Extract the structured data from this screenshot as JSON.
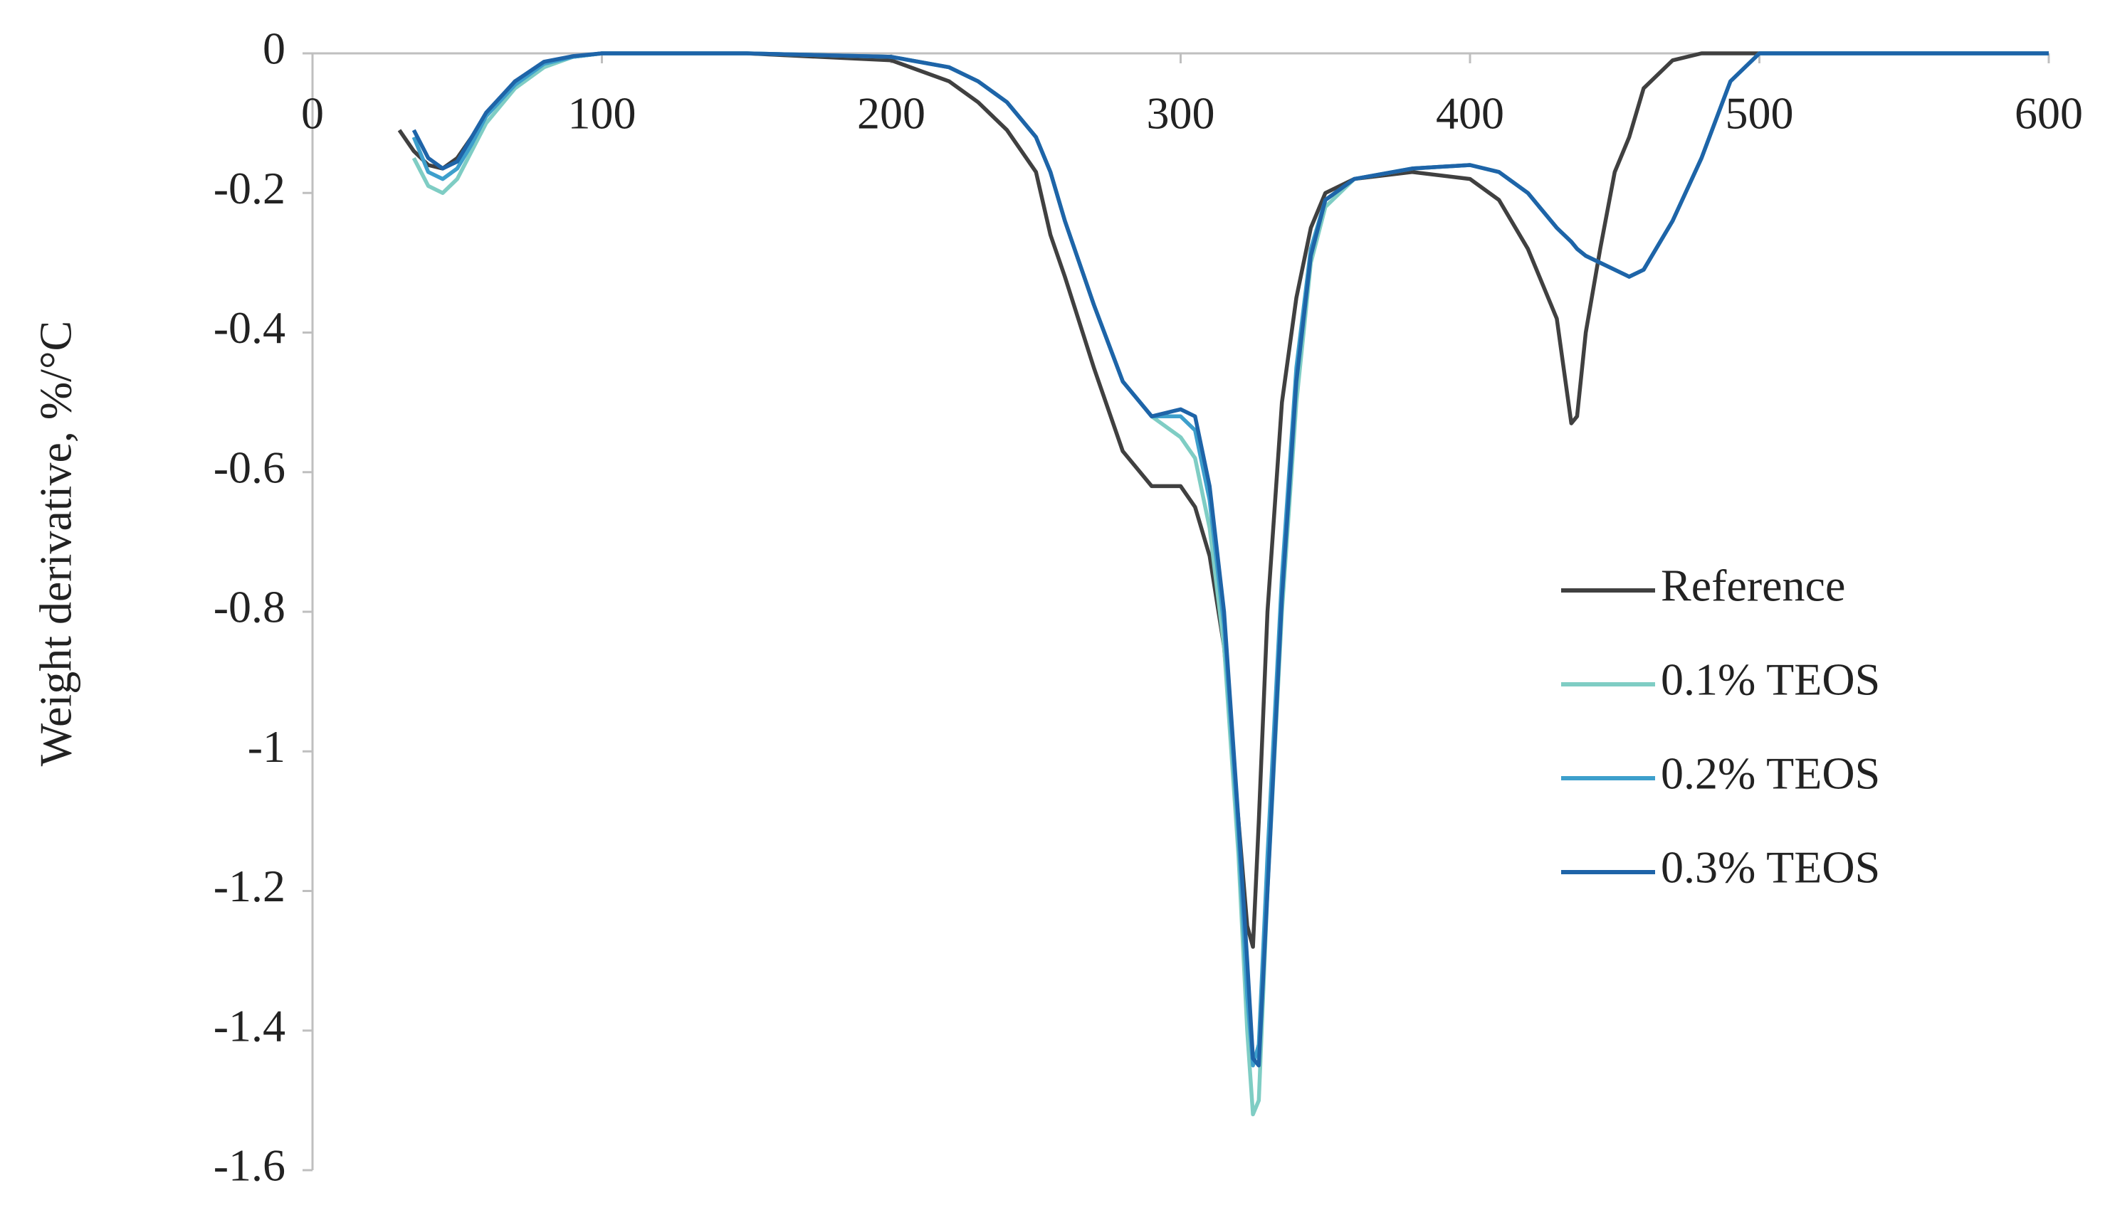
{
  "chart_data": {
    "type": "line",
    "y_label": "Weight derivative,  %/°C",
    "x": [
      30,
      35,
      40,
      45,
      50,
      55,
      60,
      70,
      80,
      90,
      100,
      120,
      150,
      200,
      220,
      230,
      240,
      250,
      255,
      260,
      270,
      280,
      290,
      300,
      305,
      310,
      315,
      320,
      323,
      325,
      327,
      330,
      335,
      340,
      345,
      350,
      360,
      380,
      400,
      410,
      420,
      430,
      435,
      437,
      440,
      445,
      450,
      455,
      460,
      470,
      480,
      490,
      500,
      550,
      600
    ],
    "series": [
      {
        "name": "Reference",
        "color": "#404040",
        "values": [
          -0.11,
          -0.14,
          -0.16,
          -0.165,
          -0.15,
          -0.12,
          -0.09,
          -0.04,
          -0.015,
          -0.005,
          0,
          0,
          0,
          -0.01,
          -0.04,
          -0.07,
          -0.11,
          -0.17,
          -0.26,
          -0.32,
          -0.45,
          -0.57,
          -0.62,
          -0.62,
          -0.65,
          -0.72,
          -0.85,
          -1.1,
          -1.25,
          -1.28,
          -1.1,
          -0.8,
          -0.5,
          -0.35,
          -0.25,
          -0.2,
          -0.18,
          -0.17,
          -0.18,
          -0.21,
          -0.28,
          -0.38,
          -0.53,
          -0.52,
          -0.4,
          -0.28,
          -0.17,
          -0.12,
          -0.05,
          -0.01,
          0,
          0,
          0,
          0,
          0
        ]
      },
      {
        "name": "0.1% TEOS",
        "color": "#7fcdc4",
        "values": [
          null,
          -0.15,
          -0.19,
          -0.2,
          -0.18,
          -0.14,
          -0.1,
          -0.05,
          -0.02,
          -0.005,
          0,
          0,
          0,
          -0.005,
          -0.02,
          -0.04,
          -0.07,
          -0.12,
          -0.17,
          -0.24,
          -0.36,
          -0.47,
          -0.52,
          -0.55,
          -0.58,
          -0.68,
          -0.85,
          -1.15,
          -1.4,
          -1.52,
          -1.5,
          -1.2,
          -0.8,
          -0.5,
          -0.3,
          -0.22,
          -0.18,
          -0.165,
          -0.16,
          -0.17,
          -0.2,
          -0.25,
          -0.27,
          -0.28,
          -0.29,
          -0.3,
          -0.31,
          -0.32,
          -0.31,
          -0.24,
          -0.15,
          -0.04,
          0,
          0,
          0
        ]
      },
      {
        "name": "0.2% TEOS",
        "color": "#3d9fcc",
        "values": [
          null,
          -0.12,
          -0.17,
          -0.18,
          -0.165,
          -0.13,
          -0.09,
          -0.045,
          -0.015,
          -0.005,
          0,
          0,
          0,
          -0.005,
          -0.02,
          -0.04,
          -0.07,
          -0.12,
          -0.17,
          -0.24,
          -0.36,
          -0.47,
          -0.52,
          -0.52,
          -0.54,
          -0.64,
          -0.82,
          -1.12,
          -1.35,
          -1.45,
          -1.42,
          -1.15,
          -0.75,
          -0.45,
          -0.28,
          -0.21,
          -0.18,
          -0.165,
          -0.16,
          -0.17,
          -0.2,
          -0.25,
          -0.27,
          -0.28,
          -0.29,
          -0.3,
          -0.31,
          -0.32,
          -0.31,
          -0.24,
          -0.15,
          -0.04,
          0,
          0,
          0
        ]
      },
      {
        "name": "0.3% TEOS",
        "color": "#1e64a8",
        "values": [
          null,
          -0.11,
          -0.15,
          -0.165,
          -0.155,
          -0.12,
          -0.085,
          -0.04,
          -0.012,
          -0.004,
          0,
          0,
          0,
          -0.005,
          -0.02,
          -0.04,
          -0.07,
          -0.12,
          -0.17,
          -0.24,
          -0.36,
          -0.47,
          -0.52,
          -0.51,
          -0.52,
          -0.62,
          -0.8,
          -1.1,
          -1.3,
          -1.44,
          -1.45,
          -1.2,
          -0.78,
          -0.47,
          -0.29,
          -0.21,
          -0.18,
          -0.165,
          -0.16,
          -0.17,
          -0.2,
          -0.25,
          -0.27,
          -0.28,
          -0.29,
          -0.3,
          -0.31,
          -0.32,
          -0.31,
          -0.24,
          -0.15,
          -0.04,
          0,
          0,
          0
        ]
      }
    ],
    "xlim": [
      0,
      600
    ],
    "xticks": [
      0,
      100,
      200,
      300,
      400,
      500,
      600
    ],
    "ylim": [
      -1.6,
      0
    ],
    "yticks": [
      0,
      -0.2,
      -0.4,
      -0.6,
      -0.8,
      -1,
      -1.2,
      -1.4,
      -1.6
    ]
  }
}
